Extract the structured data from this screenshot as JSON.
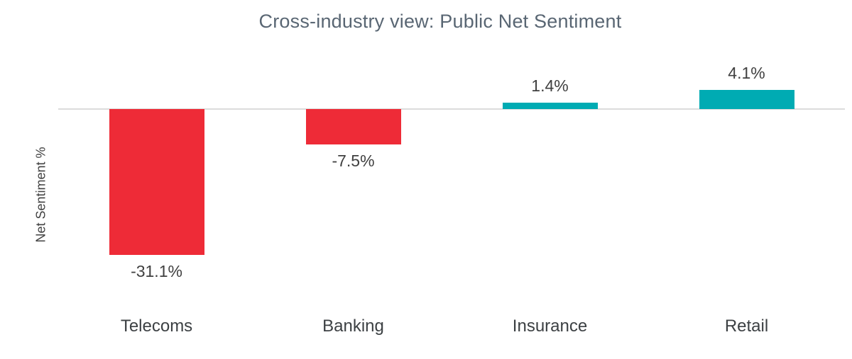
{
  "chart_data": {
    "type": "bar",
    "title": "Cross-industry view: Public Net Sentiment",
    "xlabel": "",
    "ylabel": "Net Sentiment %",
    "categories": [
      "Telecoms",
      "Banking",
      "Insurance",
      "Retail"
    ],
    "values": [
      -31.1,
      -7.5,
      1.4,
      4.1
    ],
    "value_labels": [
      "-31.1%",
      "-7.5%",
      "1.4%",
      "4.1%"
    ],
    "ylim": [
      -35,
      10
    ],
    "grid": false,
    "legend": "none",
    "colors": {
      "negative_bar": "#ee2b37",
      "positive_bar": "#00abb3",
      "zero_line": "#dcdcdc",
      "title_text": "#596673",
      "label_text": "#404040",
      "category_text": "#3c4043"
    }
  }
}
